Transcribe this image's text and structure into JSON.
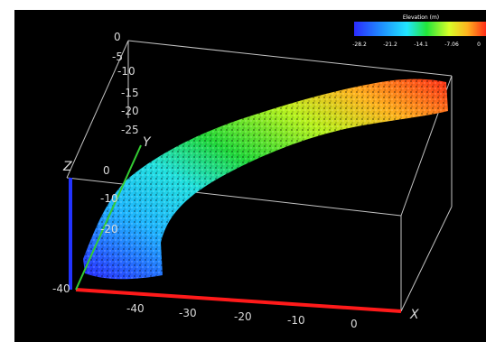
{
  "colorbar": {
    "title": "Elevation (m)",
    "ticks": [
      "-28.2",
      "-21.2",
      "-14.1",
      "-7.06",
      "0"
    ],
    "gradient": [
      "#2a2bff",
      "#1f8bff",
      "#21e6ff",
      "#22e63a",
      "#d8ff28",
      "#ffb21f",
      "#ff2d17"
    ]
  },
  "axes": {
    "x_label": "X",
    "y_label": "Y",
    "z_label": "Z",
    "x_ticks": [
      "-40",
      "-30",
      "-20",
      "-10",
      "0"
    ],
    "y_ticks": [
      "-10",
      "-20"
    ],
    "z_ticks_top": [
      "0",
      "-5",
      "-10",
      "-15",
      "-20",
      "-25"
    ],
    "z_ticks_left": [
      "0",
      "-10",
      "-20",
      "-40"
    ],
    "colors": {
      "x": "#ff1a1a",
      "y": "#33cc33",
      "z": "#2233ff",
      "box": "#d9d9d9"
    }
  }
}
